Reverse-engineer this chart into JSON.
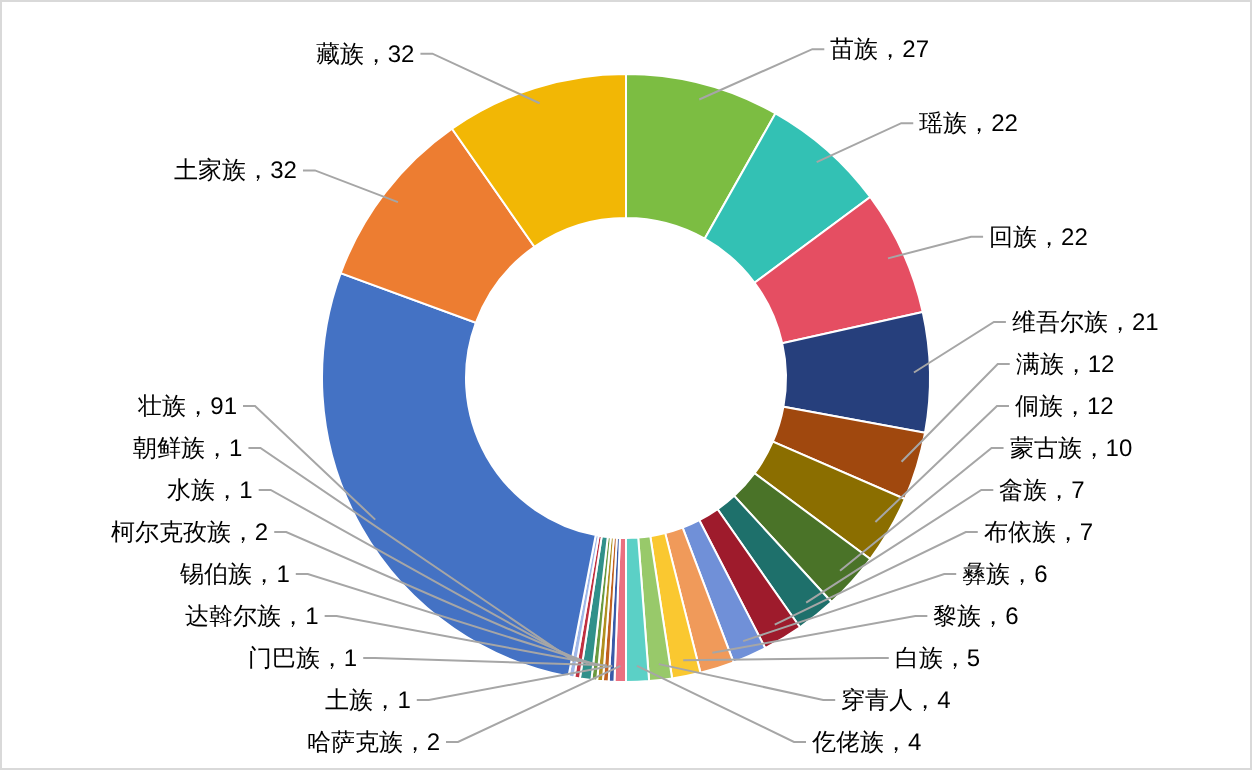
{
  "chart_data": {
    "type": "donut",
    "value_labels": [
      "，27",
      "，22",
      "，22",
      "，21",
      "，12",
      "，12",
      "，10",
      "，7",
      "，7",
      "，6",
      "，6",
      "，5",
      "，4",
      "，4",
      "，2",
      "，1",
      "，1",
      "，1",
      "，1",
      "，2",
      "，1",
      "，1",
      "，91",
      "，32",
      "，32"
    ],
    "categories": [
      "苗族",
      "瑶族",
      "回族",
      "维吾尔族",
      "满族",
      "侗族",
      "蒙古族",
      "畲族",
      "布依族",
      "彝族",
      "黎族",
      "白族",
      "穿青人",
      "仡佬族",
      "哈萨克族",
      "土族",
      "门巴族",
      "达斡尔族",
      "锡伯族",
      "柯尔克孜族",
      "水族",
      "朝鲜族",
      "壮族",
      "土家族",
      "藏族"
    ],
    "values": [
      27,
      22,
      22,
      21,
      12,
      12,
      10,
      7,
      7,
      6,
      6,
      5,
      4,
      4,
      2,
      1,
      1,
      1,
      1,
      2,
      1,
      1,
      91,
      32,
      32
    ],
    "colors": [
      "#7cbd42",
      "#33c1b4",
      "#e54e62",
      "#263f7c",
      "#a0480e",
      "#8b6e00",
      "#4a7328",
      "#1e706b",
      "#9e1b2c",
      "#7090d8",
      "#f09a5a",
      "#fac830",
      "#98c96a",
      "#5bd0c6",
      "#ea7080",
      "#3a5aa8",
      "#c06020",
      "#b09020",
      "#6a9a40",
      "#30908a",
      "#c03040",
      "#a0b8e8",
      "#4472c4",
      "#ed7d31",
      "#f2b705"
    ]
  }
}
